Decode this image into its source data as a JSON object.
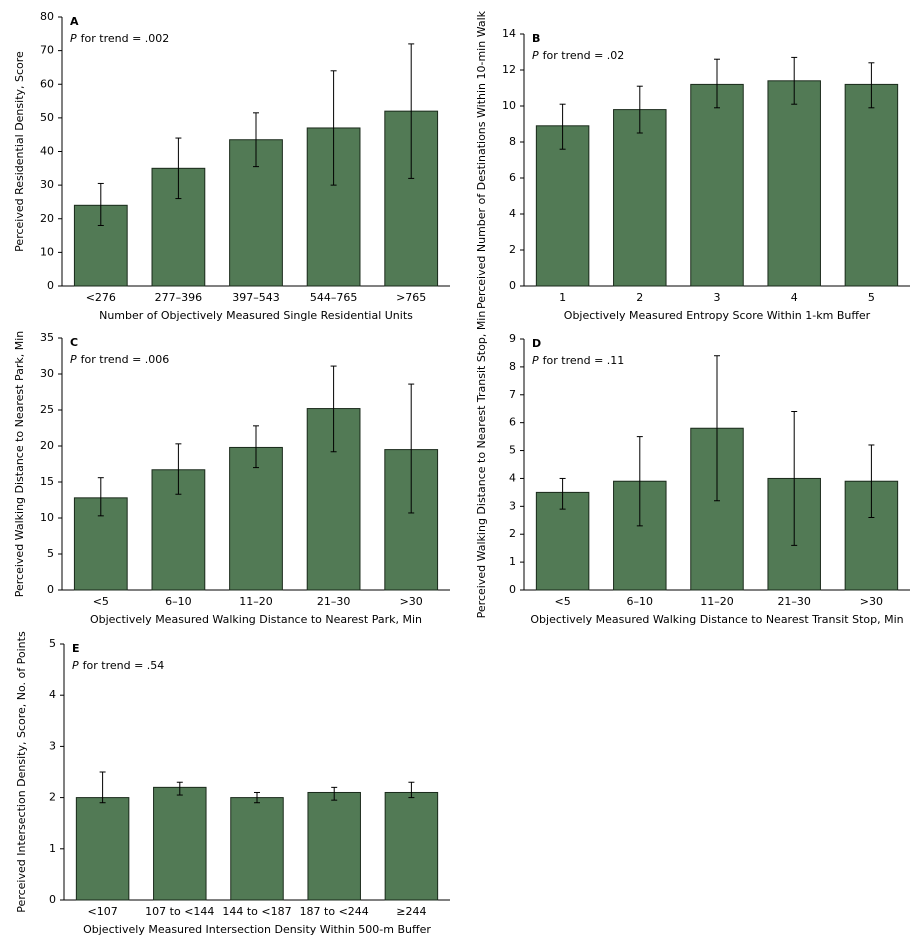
{
  "chart_data": [
    {
      "type": "bar",
      "panel": "A",
      "trend_italic": "P",
      "trend_text": "for trend = .002",
      "x_label": "Number of Objectively Measured Single Residential Units",
      "y_label": "Perceived Residential Density, Score",
      "categories": [
        "<276",
        "277–396",
        "397–543",
        "544–765",
        ">765"
      ],
      "values": [
        24,
        35,
        43.5,
        47,
        52
      ],
      "error_bars": [
        [
          18,
          30.5
        ],
        [
          26,
          44
        ],
        [
          35.5,
          51.5
        ],
        [
          30,
          64
        ],
        [
          32,
          72
        ]
      ],
      "color": "#527a55",
      "ylim": [
        0,
        80
      ],
      "yticks": [
        0,
        10,
        20,
        30,
        40,
        50,
        60,
        70,
        80
      ]
    },
    {
      "type": "bar",
      "panel": "B",
      "trend_italic": "P",
      "trend_text": "for trend = .02",
      "x_label": "Objectively Measured Entropy Score Within 1-km Buffer",
      "y_label": "Perceived Number of Destinations Within 10-min Walk",
      "categories": [
        "1",
        "2",
        "3",
        "4",
        "5"
      ],
      "values": [
        8.9,
        9.8,
        11.2,
        11.4,
        11.2
      ],
      "error_bars": [
        [
          7.6,
          10.1
        ],
        [
          8.5,
          11.1
        ],
        [
          9.9,
          12.6
        ],
        [
          10.1,
          12.7
        ],
        [
          9.9,
          12.4
        ]
      ],
      "color": "#527a55",
      "ylim": [
        0,
        14
      ],
      "yticks": [
        0,
        2,
        4,
        6,
        8,
        10,
        12,
        14
      ]
    },
    {
      "type": "bar",
      "panel": "C",
      "trend_italic": "P",
      "trend_text": "for trend = .006",
      "x_label": "Objectively Measured Walking Distance to Nearest Park, Min",
      "y_label": "Perceived Walking Distance to Nearest Park, Min",
      "categories": [
        "<5",
        "6–10",
        "11–20",
        "21–30",
        ">30"
      ],
      "values": [
        12.8,
        16.7,
        19.8,
        25.2,
        19.5
      ],
      "error_bars": [
        [
          10.3,
          15.6
        ],
        [
          13.3,
          20.3
        ],
        [
          17,
          22.8
        ],
        [
          19.2,
          31.1
        ],
        [
          10.7,
          28.6
        ]
      ],
      "color": "#527a55",
      "ylim": [
        0,
        35
      ],
      "yticks": [
        0,
        5,
        10,
        15,
        20,
        25,
        30,
        35
      ]
    },
    {
      "type": "bar",
      "panel": "D",
      "trend_italic": "P",
      "trend_text": "for trend = .11",
      "x_label": "Objectively Measured Walking Distance to Nearest Transit Stop, Min",
      "y_label": "Perceived Walking Distance to Nearest Transit Stop, Min",
      "categories": [
        "<5",
        "6–10",
        "11–20",
        "21–30",
        ">30"
      ],
      "values": [
        3.5,
        3.9,
        5.8,
        4.0,
        3.9
      ],
      "error_bars": [
        [
          2.9,
          4.0
        ],
        [
          2.3,
          5.5
        ],
        [
          3.2,
          8.4
        ],
        [
          1.6,
          6.4
        ],
        [
          2.6,
          5.2
        ]
      ],
      "color": "#527a55",
      "ylim": [
        0,
        9
      ],
      "yticks": [
        0,
        1,
        2,
        3,
        4,
        5,
        6,
        7,
        8,
        9
      ]
    },
    {
      "type": "bar",
      "panel": "E",
      "trend_italic": "P",
      "trend_text": "for trend = .54",
      "x_label": "Objectively Measured Intersection Density Within 500-m Buffer",
      "y_label": "Perceived Intersection Density, Score, No. of Points",
      "categories": [
        "<107",
        "107 to <144",
        "144 to <187",
        "187 to <244",
        "≥244"
      ],
      "values": [
        2.0,
        2.2,
        2.0,
        2.1,
        2.1
      ],
      "error_bars": [
        [
          1.9,
          2.5
        ],
        [
          2.05,
          2.3
        ],
        [
          1.9,
          2.1
        ],
        [
          1.95,
          2.2
        ],
        [
          2.0,
          2.3
        ]
      ],
      "color": "#527a55",
      "ylim": [
        0,
        5
      ],
      "yticks": [
        0,
        1,
        2,
        3,
        4,
        5
      ]
    }
  ]
}
